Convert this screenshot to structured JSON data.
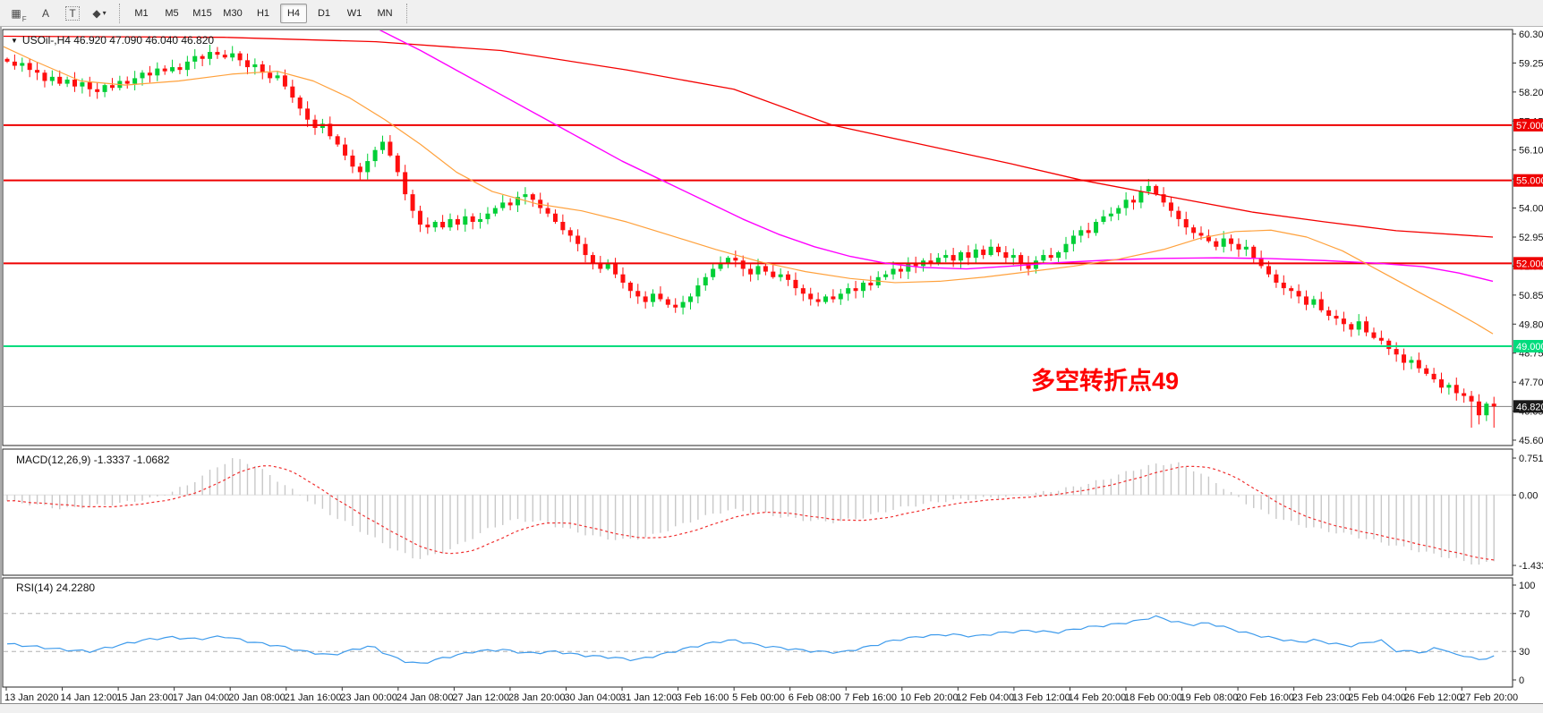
{
  "toolbar": {
    "tools": [
      {
        "name": "templates-grid-icon",
        "glyph": "▦",
        "sub": "F"
      },
      {
        "name": "label-a-icon",
        "glyph": "A",
        "sub": ""
      },
      {
        "name": "text-box-icon",
        "glyph": "T",
        "sub": "",
        "boxed": true
      },
      {
        "name": "styles-diamond-icon",
        "glyph": "◆",
        "sub": "▾"
      }
    ],
    "timeframes": [
      "M1",
      "M5",
      "M15",
      "M30",
      "H1",
      "H4",
      "D1",
      "W1",
      "MN"
    ],
    "selected_timeframe": "H4"
  },
  "main_panel": {
    "title": "USOil-,H4  46.920 47.090 46.040 46.820",
    "symbol": "USOil-",
    "period": "H4",
    "open": "46.920",
    "high": "47.090",
    "low": "46.040",
    "close": "46.820",
    "annotation": {
      "text": "多空转折点49",
      "color": "#ff0000"
    }
  },
  "macd_panel": {
    "label": "MACD(12,26,9) -1.3337 -1.0682",
    "main_value": "-1.3337",
    "signal_value": "-1.0682"
  },
  "rsi_panel": {
    "label": "RSI(14) 24.2280",
    "value": "24.2280"
  },
  "chart_data": {
    "type": "candlestick",
    "symbol": "USOil-",
    "timeframe": "H4",
    "price_axis": {
      "ylim": [
        45.41,
        60.46
      ],
      "ticks": [
        {
          "label": "60.300",
          "price": 60.3
        },
        {
          "label": "59.250",
          "price": 59.25
        },
        {
          "label": "58.200",
          "price": 58.2
        },
        {
          "label": "57.150",
          "price": 57.15
        },
        {
          "label": "56.100",
          "price": 56.1
        },
        {
          "label": "55.050",
          "price": 55.05
        },
        {
          "label": "54.000",
          "price": 54.0
        },
        {
          "label": "52.950",
          "price": 52.95
        },
        {
          "label": "51.900",
          "price": 51.9
        },
        {
          "label": "50.850",
          "price": 50.85
        },
        {
          "label": "49.800",
          "price": 49.8
        },
        {
          "label": "48.750",
          "price": 48.75
        },
        {
          "label": "47.700",
          "price": 47.7
        },
        {
          "label": "46.650",
          "price": 46.65
        },
        {
          "label": "45.600",
          "price": 45.6
        }
      ]
    },
    "price_levels": [
      {
        "label": "57.000",
        "price": 57.0,
        "color": "#ee0000"
      },
      {
        "label": "55.000",
        "price": 55.0,
        "color": "#ee0000"
      },
      {
        "label": "52.000",
        "price": 52.0,
        "color": "#ee0000"
      },
      {
        "label": "49.000",
        "price": 49.0,
        "color": "#00dc7d"
      }
    ],
    "current_price": {
      "label": "46.820",
      "price": 46.82
    },
    "candles": {
      "first_open": 59.4,
      "closes": [
        59.3,
        59.15,
        59.25,
        59.0,
        58.9,
        58.6,
        58.75,
        58.5,
        58.65,
        58.4,
        58.55,
        58.3,
        58.2,
        58.45,
        58.35,
        58.6,
        58.5,
        58.7,
        58.9,
        58.8,
        59.05,
        58.95,
        59.1,
        59.0,
        59.3,
        59.5,
        59.4,
        59.65,
        59.55,
        59.45,
        59.6,
        59.35,
        59.1,
        59.2,
        58.9,
        58.7,
        58.8,
        58.4,
        58.0,
        57.6,
        57.2,
        56.9,
        57.05,
        56.6,
        56.3,
        55.9,
        55.5,
        55.3,
        55.7,
        56.1,
        56.4,
        55.9,
        55.3,
        54.5,
        53.9,
        53.4,
        53.3,
        53.5,
        53.3,
        53.6,
        53.4,
        53.7,
        53.5,
        53.6,
        53.8,
        54.0,
        54.2,
        54.1,
        54.4,
        54.5,
        54.3,
        54.0,
        53.8,
        53.5,
        53.2,
        53.0,
        52.7,
        52.3,
        52.0,
        51.8,
        52.0,
        51.6,
        51.3,
        51.0,
        50.8,
        50.6,
        50.9,
        50.7,
        50.5,
        50.4,
        50.6,
        50.8,
        51.2,
        51.5,
        51.8,
        52.0,
        52.2,
        52.1,
        51.8,
        51.6,
        51.9,
        51.7,
        51.5,
        51.6,
        51.4,
        51.1,
        50.9,
        50.7,
        50.6,
        50.8,
        50.7,
        50.9,
        51.1,
        51.0,
        51.3,
        51.2,
        51.5,
        51.6,
        51.8,
        51.7,
        52.0,
        51.9,
        52.1,
        52.0,
        52.2,
        52.3,
        52.1,
        52.4,
        52.2,
        52.5,
        52.3,
        52.6,
        52.4,
        52.2,
        52.3,
        52.0,
        51.8,
        52.1,
        52.3,
        52.2,
        52.4,
        52.7,
        53.0,
        53.2,
        53.1,
        53.5,
        53.7,
        53.8,
        54.0,
        54.3,
        54.2,
        54.6,
        54.8,
        54.5,
        54.2,
        53.9,
        53.6,
        53.3,
        53.1,
        53.0,
        52.8,
        52.6,
        52.9,
        52.7,
        52.5,
        52.6,
        52.2,
        51.9,
        51.6,
        51.3,
        51.1,
        51.0,
        50.8,
        50.5,
        50.7,
        50.3,
        50.1,
        50.0,
        49.8,
        49.6,
        49.9,
        49.5,
        49.3,
        49.2,
        48.9,
        48.7,
        48.4,
        48.5,
        48.2,
        48.0,
        47.8,
        47.5,
        47.6,
        47.3,
        47.2,
        47.0,
        46.5,
        46.92,
        46.82
      ]
    },
    "moving_averages": [
      {
        "name": "slow-ma",
        "color": "#f40000",
        "width": 1.3,
        "points": [
          [
            0,
            60.22
          ],
          [
            250,
            60.18
          ],
          [
            420,
            60.02
          ],
          [
            560,
            59.7
          ],
          [
            700,
            59.0
          ],
          [
            820,
            58.3
          ],
          [
            930,
            57.0
          ],
          [
            1030,
            56.3
          ],
          [
            1130,
            55.6
          ],
          [
            1210,
            55.0
          ],
          [
            1300,
            54.45
          ],
          [
            1400,
            53.85
          ],
          [
            1480,
            53.5
          ],
          [
            1560,
            53.18
          ],
          [
            1668,
            52.95
          ]
        ]
      },
      {
        "name": "mid-ma",
        "color": "#ff00ff",
        "width": 1.4,
        "points": [
          [
            424,
            60.45
          ],
          [
            470,
            59.7
          ],
          [
            515,
            58.9
          ],
          [
            560,
            58.1
          ],
          [
            605,
            57.3
          ],
          [
            650,
            56.5
          ],
          [
            695,
            55.7
          ],
          [
            740,
            55.0
          ],
          [
            785,
            54.3
          ],
          [
            830,
            53.6
          ],
          [
            870,
            53.05
          ],
          [
            910,
            52.6
          ],
          [
            950,
            52.25
          ],
          [
            990,
            52.0
          ],
          [
            1030,
            51.85
          ],
          [
            1080,
            51.8
          ],
          [
            1130,
            51.9
          ],
          [
            1180,
            52.02
          ],
          [
            1240,
            52.12
          ],
          [
            1300,
            52.18
          ],
          [
            1360,
            52.2
          ],
          [
            1420,
            52.17
          ],
          [
            1480,
            52.1
          ],
          [
            1540,
            52.0
          ],
          [
            1590,
            51.88
          ],
          [
            1630,
            51.65
          ],
          [
            1668,
            51.35
          ]
        ]
      },
      {
        "name": "fast-ma",
        "color": "#ffa13c",
        "width": 1.2,
        "points": [
          [
            0,
            59.9
          ],
          [
            40,
            59.3
          ],
          [
            90,
            58.6
          ],
          [
            140,
            58.45
          ],
          [
            200,
            58.6
          ],
          [
            260,
            58.85
          ],
          [
            310,
            58.95
          ],
          [
            350,
            58.6
          ],
          [
            390,
            58.0
          ],
          [
            430,
            57.2
          ],
          [
            470,
            56.3
          ],
          [
            510,
            55.3
          ],
          [
            550,
            54.6
          ],
          [
            600,
            54.15
          ],
          [
            650,
            53.9
          ],
          [
            700,
            53.5
          ],
          [
            750,
            53.0
          ],
          [
            800,
            52.5
          ],
          [
            850,
            52.05
          ],
          [
            900,
            51.7
          ],
          [
            950,
            51.45
          ],
          [
            1000,
            51.3
          ],
          [
            1050,
            51.35
          ],
          [
            1100,
            51.5
          ],
          [
            1150,
            51.7
          ],
          [
            1200,
            51.9
          ],
          [
            1250,
            52.15
          ],
          [
            1300,
            52.5
          ],
          [
            1340,
            52.9
          ],
          [
            1380,
            53.15
          ],
          [
            1420,
            53.2
          ],
          [
            1460,
            52.95
          ],
          [
            1500,
            52.45
          ],
          [
            1540,
            51.75
          ],
          [
            1580,
            51.05
          ],
          [
            1620,
            50.35
          ],
          [
            1650,
            49.8
          ],
          [
            1668,
            49.45
          ]
        ]
      }
    ],
    "macd": {
      "params": "12,26,9",
      "main_value": -1.3337,
      "signal_value": -1.0682,
      "axis_ticks": [
        {
          "label": "0.7511",
          "value": 0.7511
        },
        {
          "label": "0.00",
          "value": 0
        },
        {
          "label": "-1.433",
          "value": -1.433
        }
      ],
      "range": [
        -1.433,
        0.7511
      ],
      "main_points": [
        [
          8,
          -0.12
        ],
        [
          70,
          -0.28
        ],
        [
          130,
          -0.18
        ],
        [
          175,
          -0.05
        ],
        [
          210,
          0.2
        ],
        [
          240,
          0.55
        ],
        [
          262,
          0.7511
        ],
        [
          285,
          0.6
        ],
        [
          310,
          0.3
        ],
        [
          335,
          0.0
        ],
        [
          360,
          -0.3
        ],
        [
          390,
          -0.6
        ],
        [
          420,
          -0.9
        ],
        [
          445,
          -1.15
        ],
        [
          465,
          -1.3
        ],
        [
          490,
          -1.2
        ],
        [
          515,
          -1.0
        ],
        [
          545,
          -0.7
        ],
        [
          575,
          -0.5
        ],
        [
          605,
          -0.55
        ],
        [
          635,
          -0.7
        ],
        [
          665,
          -0.85
        ],
        [
          695,
          -0.92
        ],
        [
          725,
          -0.85
        ],
        [
          755,
          -0.65
        ],
        [
          785,
          -0.45
        ],
        [
          815,
          -0.3
        ],
        [
          845,
          -0.35
        ],
        [
          875,
          -0.45
        ],
        [
          905,
          -0.52
        ],
        [
          935,
          -0.55
        ],
        [
          965,
          -0.45
        ],
        [
          995,
          -0.3
        ],
        [
          1025,
          -0.2
        ],
        [
          1055,
          -0.12
        ],
        [
          1085,
          -0.08
        ],
        [
          1115,
          -0.05
        ],
        [
          1145,
          0.0
        ],
        [
          1175,
          0.08
        ],
        [
          1205,
          0.18
        ],
        [
          1235,
          0.32
        ],
        [
          1265,
          0.5
        ],
        [
          1290,
          0.62
        ],
        [
          1315,
          0.65
        ],
        [
          1335,
          0.5
        ],
        [
          1355,
          0.3
        ],
        [
          1375,
          0.05
        ],
        [
          1395,
          -0.2
        ],
        [
          1420,
          -0.42
        ],
        [
          1450,
          -0.6
        ],
        [
          1480,
          -0.72
        ],
        [
          1510,
          -0.82
        ],
        [
          1540,
          -0.95
        ],
        [
          1570,
          -1.08
        ],
        [
          1600,
          -1.2
        ],
        [
          1630,
          -1.32
        ],
        [
          1655,
          -1.433
        ],
        [
          1668,
          -1.3337
        ]
      ]
    },
    "rsi": {
      "period": 14,
      "value": 24.228,
      "axis_ticks": [
        {
          "label": "100",
          "value": 100
        },
        {
          "label": "70",
          "value": 70
        },
        {
          "label": "30",
          "value": 30
        },
        {
          "label": "0",
          "value": 0
        }
      ],
      "levels": [
        70,
        30
      ],
      "points": [
        [
          8,
          38
        ],
        [
          40,
          35
        ],
        [
          70,
          32
        ],
        [
          100,
          30
        ],
        [
          130,
          36
        ],
        [
          160,
          42
        ],
        [
          190,
          45
        ],
        [
          220,
          43
        ],
        [
          250,
          46
        ],
        [
          280,
          40
        ],
        [
          310,
          36
        ],
        [
          340,
          30
        ],
        [
          370,
          26
        ],
        [
          400,
          33
        ],
        [
          415,
          36
        ],
        [
          430,
          28
        ],
        [
          450,
          20
        ],
        [
          470,
          17
        ],
        [
          490,
          22
        ],
        [
          510,
          26
        ],
        [
          530,
          30
        ],
        [
          560,
          32
        ],
        [
          590,
          28
        ],
        [
          620,
          30
        ],
        [
          650,
          26
        ],
        [
          680,
          24
        ],
        [
          710,
          21
        ],
        [
          740,
          27
        ],
        [
          770,
          34
        ],
        [
          800,
          40
        ],
        [
          820,
          42
        ],
        [
          850,
          36
        ],
        [
          880,
          33
        ],
        [
          910,
          30
        ],
        [
          940,
          29
        ],
        [
          970,
          35
        ],
        [
          1000,
          42
        ],
        [
          1030,
          46
        ],
        [
          1060,
          48
        ],
        [
          1090,
          46
        ],
        [
          1120,
          50
        ],
        [
          1150,
          52
        ],
        [
          1180,
          50
        ],
        [
          1210,
          55
        ],
        [
          1240,
          58
        ],
        [
          1270,
          62
        ],
        [
          1290,
          67
        ],
        [
          1310,
          62
        ],
        [
          1330,
          58
        ],
        [
          1350,
          60
        ],
        [
          1370,
          55
        ],
        [
          1390,
          50
        ],
        [
          1410,
          46
        ],
        [
          1430,
          43
        ],
        [
          1450,
          40
        ],
        [
          1470,
          42
        ],
        [
          1490,
          38
        ],
        [
          1510,
          36
        ],
        [
          1530,
          40
        ],
        [
          1542,
          42
        ],
        [
          1563,
          29
        ],
        [
          1578,
          31
        ],
        [
          1593,
          28
        ],
        [
          1605,
          36
        ],
        [
          1620,
          28
        ],
        [
          1635,
          26
        ],
        [
          1650,
          21
        ],
        [
          1660,
          23
        ],
        [
          1668,
          24.23
        ]
      ]
    },
    "time_axis": [
      "13 Jan 2020",
      "14 Jan 12:00",
      "15 Jan 23:00",
      "17 Jan 04:00",
      "20 Jan 08:00",
      "21 Jan 16:00",
      "23 Jan 00:00",
      "24 Jan 08:00",
      "27 Jan 12:00",
      "28 Jan 20:00",
      "30 Jan 04:00",
      "31 Jan 12:00",
      "3 Feb 16:00",
      "5 Feb 00:00",
      "6 Feb 08:00",
      "7 Feb 16:00",
      "10 Feb 20:00",
      "12 Feb 04:00",
      "13 Feb 12:00",
      "14 Feb 20:00",
      "18 Feb 00:00",
      "19 Feb 08:00",
      "20 Feb 16:00",
      "23 Feb 23:00",
      "25 Feb 04:00",
      "26 Feb 12:00",
      "27 Feb 20:00"
    ]
  },
  "colors": {
    "candle_up": "#00cf36",
    "candle_down": "#ff0f0f",
    "level_red": "#ee0000",
    "level_green": "#00dc7d",
    "current_price_line": "#808080",
    "current_price_badge": "#1a1a1a",
    "histogram": "#c8c8c8",
    "macd_signal": "#f03030",
    "rsi_line": "#3e9bec",
    "axis_text": "#111111",
    "panel_border": "#262626"
  }
}
